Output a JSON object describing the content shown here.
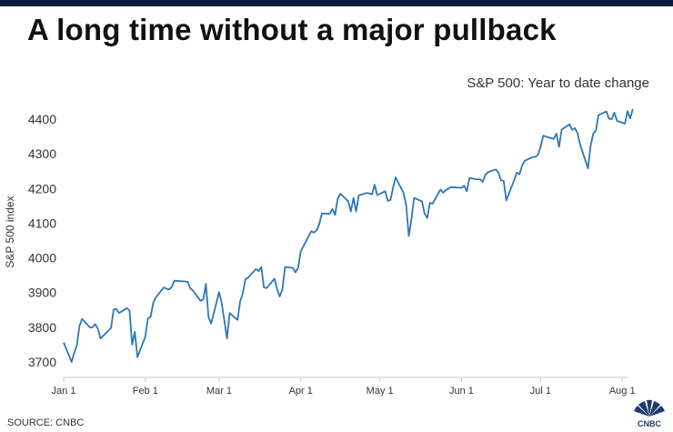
{
  "header": {
    "title": "A long time without a major pullback",
    "subtitle": "S&P 500: Year to date change"
  },
  "footer": {
    "source": "SOURCE: CNBC",
    "logo_text": "CNBC"
  },
  "colors": {
    "line": "#2e77b5",
    "axis": "#c8c8c8",
    "top_rule": "#0b1a3b"
  },
  "chart_data": {
    "type": "line",
    "ylabel": "S&P 500 index",
    "xlabel": "",
    "ylim": [
      3680,
      4440
    ],
    "yticks": [
      3700,
      3800,
      3900,
      4000,
      4100,
      4200,
      4300,
      4400
    ],
    "xlim": [
      "2021-01-01",
      "2021-08-03"
    ],
    "xticks": [
      {
        "date": "2021-01-01",
        "label": "Jan 1"
      },
      {
        "date": "2021-02-01",
        "label": "Feb 1"
      },
      {
        "date": "2021-03-01",
        "label": "Mar 1"
      },
      {
        "date": "2021-04-01",
        "label": "Apr 1"
      },
      {
        "date": "2021-05-01",
        "label": "May 1"
      },
      {
        "date": "2021-06-01",
        "label": "Jun 1"
      },
      {
        "date": "2021-07-01",
        "label": "Jul 1"
      },
      {
        "date": "2021-08-01",
        "label": "Aug 1"
      }
    ],
    "grid": false,
    "series": [
      {
        "points": [
          [
            "2021-01-01",
            3756
          ],
          [
            "2021-01-04",
            3700
          ],
          [
            "2021-01-05",
            3726
          ],
          [
            "2021-01-06",
            3748
          ],
          [
            "2021-01-07",
            3804
          ],
          [
            "2021-01-08",
            3824
          ],
          [
            "2021-01-11",
            3799
          ],
          [
            "2021-01-12",
            3801
          ],
          [
            "2021-01-13",
            3809
          ],
          [
            "2021-01-14",
            3795
          ],
          [
            "2021-01-15",
            3768
          ],
          [
            "2021-01-19",
            3798
          ],
          [
            "2021-01-20",
            3851
          ],
          [
            "2021-01-21",
            3853
          ],
          [
            "2021-01-22",
            3841
          ],
          [
            "2021-01-25",
            3855
          ],
          [
            "2021-01-26",
            3849
          ],
          [
            "2021-01-27",
            3750
          ],
          [
            "2021-01-28",
            3787
          ],
          [
            "2021-01-29",
            3714
          ],
          [
            "2021-02-01",
            3773
          ],
          [
            "2021-02-02",
            3826
          ],
          [
            "2021-02-03",
            3830
          ],
          [
            "2021-02-04",
            3871
          ],
          [
            "2021-02-05",
            3886
          ],
          [
            "2021-02-08",
            3915
          ],
          [
            "2021-02-09",
            3911
          ],
          [
            "2021-02-10",
            3909
          ],
          [
            "2021-02-11",
            3916
          ],
          [
            "2021-02-12",
            3934
          ],
          [
            "2021-02-16",
            3932
          ],
          [
            "2021-02-17",
            3931
          ],
          [
            "2021-02-18",
            3913
          ],
          [
            "2021-02-19",
            3906
          ],
          [
            "2021-02-22",
            3876
          ],
          [
            "2021-02-23",
            3881
          ],
          [
            "2021-02-24",
            3925
          ],
          [
            "2021-02-25",
            3829
          ],
          [
            "2021-02-26",
            3811
          ],
          [
            "2021-03-01",
            3901
          ],
          [
            "2021-03-02",
            3870
          ],
          [
            "2021-03-03",
            3819
          ],
          [
            "2021-03-04",
            3768
          ],
          [
            "2021-03-05",
            3841
          ],
          [
            "2021-03-08",
            3821
          ],
          [
            "2021-03-09",
            3875
          ],
          [
            "2021-03-10",
            3898
          ],
          [
            "2021-03-11",
            3939
          ],
          [
            "2021-03-12",
            3943
          ],
          [
            "2021-03-15",
            3968
          ],
          [
            "2021-03-16",
            3962
          ],
          [
            "2021-03-17",
            3974
          ],
          [
            "2021-03-18",
            3915
          ],
          [
            "2021-03-19",
            3913
          ],
          [
            "2021-03-22",
            3940
          ],
          [
            "2021-03-23",
            3910
          ],
          [
            "2021-03-24",
            3889
          ],
          [
            "2021-03-25",
            3909
          ],
          [
            "2021-03-26",
            3974
          ],
          [
            "2021-03-29",
            3971
          ],
          [
            "2021-03-30",
            3958
          ],
          [
            "2021-03-31",
            3972
          ],
          [
            "2021-04-01",
            4019
          ],
          [
            "2021-04-05",
            4077
          ],
          [
            "2021-04-06",
            4073
          ],
          [
            "2021-04-07",
            4079
          ],
          [
            "2021-04-08",
            4097
          ],
          [
            "2021-04-09",
            4128
          ],
          [
            "2021-04-12",
            4127
          ],
          [
            "2021-04-13",
            4141
          ],
          [
            "2021-04-14",
            4124
          ],
          [
            "2021-04-15",
            4170
          ],
          [
            "2021-04-16",
            4185
          ],
          [
            "2021-04-19",
            4163
          ],
          [
            "2021-04-20",
            4134
          ],
          [
            "2021-04-21",
            4173
          ],
          [
            "2021-04-22",
            4134
          ],
          [
            "2021-04-23",
            4180
          ],
          [
            "2021-04-26",
            4187
          ],
          [
            "2021-04-27",
            4186
          ],
          [
            "2021-04-28",
            4183
          ],
          [
            "2021-04-29",
            4211
          ],
          [
            "2021-04-30",
            4181
          ],
          [
            "2021-05-03",
            4192
          ],
          [
            "2021-05-04",
            4164
          ],
          [
            "2021-05-05",
            4167
          ],
          [
            "2021-05-06",
            4201
          ],
          [
            "2021-05-07",
            4232
          ],
          [
            "2021-05-10",
            4188
          ],
          [
            "2021-05-11",
            4152
          ],
          [
            "2021-05-12",
            4063
          ],
          [
            "2021-05-13",
            4112
          ],
          [
            "2021-05-14",
            4173
          ],
          [
            "2021-05-17",
            4163
          ],
          [
            "2021-05-18",
            4127
          ],
          [
            "2021-05-19",
            4115
          ],
          [
            "2021-05-20",
            4159
          ],
          [
            "2021-05-21",
            4156
          ],
          [
            "2021-05-24",
            4197
          ],
          [
            "2021-05-25",
            4188
          ],
          [
            "2021-05-26",
            4195
          ],
          [
            "2021-05-27",
            4200
          ],
          [
            "2021-05-28",
            4204
          ],
          [
            "2021-06-01",
            4202
          ],
          [
            "2021-06-02",
            4208
          ],
          [
            "2021-06-03",
            4192
          ],
          [
            "2021-06-04",
            4230
          ],
          [
            "2021-06-07",
            4226
          ],
          [
            "2021-06-08",
            4227
          ],
          [
            "2021-06-09",
            4219
          ],
          [
            "2021-06-10",
            4239
          ],
          [
            "2021-06-11",
            4247
          ],
          [
            "2021-06-14",
            4255
          ],
          [
            "2021-06-15",
            4246
          ],
          [
            "2021-06-16",
            4223
          ],
          [
            "2021-06-17",
            4222
          ],
          [
            "2021-06-18",
            4166
          ],
          [
            "2021-06-21",
            4224
          ],
          [
            "2021-06-22",
            4246
          ],
          [
            "2021-06-23",
            4241
          ],
          [
            "2021-06-24",
            4266
          ],
          [
            "2021-06-25",
            4280
          ],
          [
            "2021-06-28",
            4291
          ],
          [
            "2021-06-29",
            4291
          ],
          [
            "2021-06-30",
            4297
          ],
          [
            "2021-07-01",
            4320
          ],
          [
            "2021-07-02",
            4352
          ],
          [
            "2021-07-06",
            4343
          ],
          [
            "2021-07-07",
            4358
          ],
          [
            "2021-07-08",
            4320
          ],
          [
            "2021-07-09",
            4370
          ],
          [
            "2021-07-12",
            4385
          ],
          [
            "2021-07-13",
            4369
          ],
          [
            "2021-07-14",
            4374
          ],
          [
            "2021-07-15",
            4360
          ],
          [
            "2021-07-16",
            4327
          ],
          [
            "2021-07-19",
            4258
          ],
          [
            "2021-07-20",
            4323
          ],
          [
            "2021-07-21",
            4358
          ],
          [
            "2021-07-22",
            4367
          ],
          [
            "2021-07-23",
            4412
          ],
          [
            "2021-07-26",
            4422
          ],
          [
            "2021-07-27",
            4401
          ],
          [
            "2021-07-28",
            4400
          ],
          [
            "2021-07-29",
            4419
          ],
          [
            "2021-07-30",
            4395
          ],
          [
            "2021-08-02",
            4387
          ],
          [
            "2021-08-03",
            4423
          ],
          [
            "2021-08-04",
            4402
          ],
          [
            "2021-08-05",
            4429
          ]
        ]
      }
    ]
  }
}
